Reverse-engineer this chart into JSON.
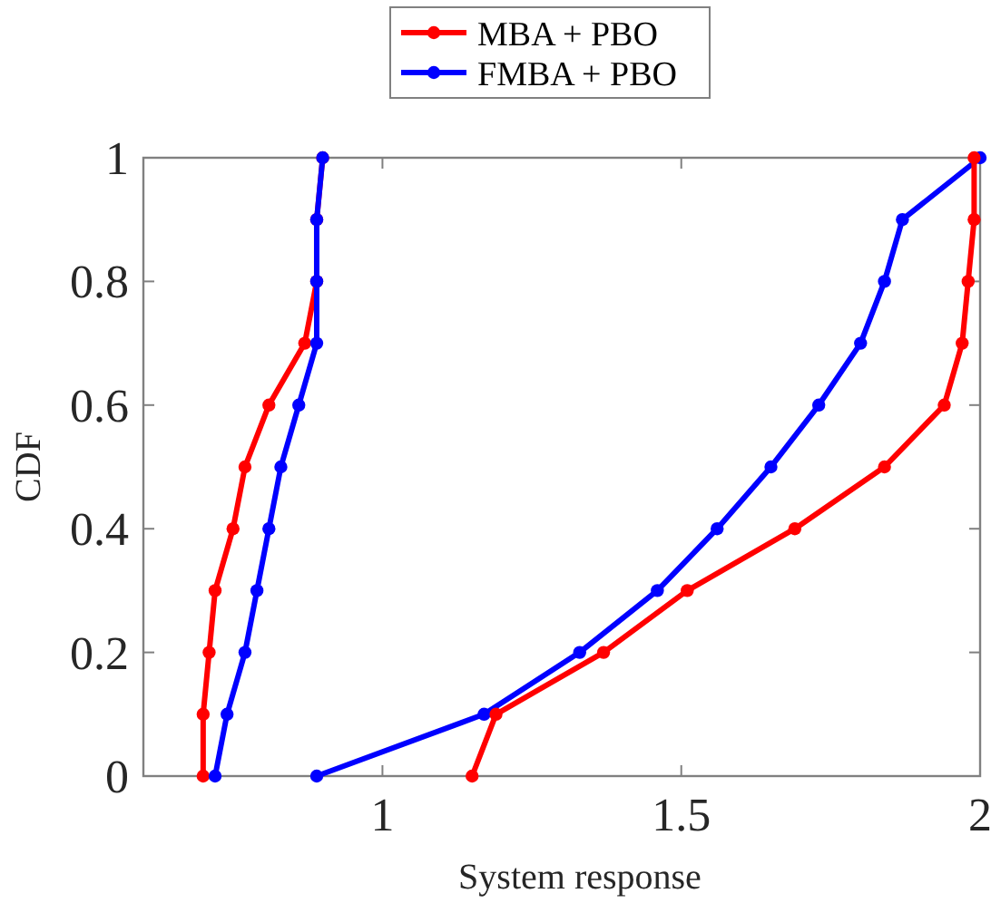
{
  "chart_data": {
    "type": "line",
    "xlabel": "System response",
    "ylabel": "CDF",
    "xlim": [
      0.6,
      2
    ],
    "xticks": [
      1,
      1.5,
      2
    ],
    "ylim": [
      0,
      1
    ],
    "yticks": [
      0,
      0.2,
      0.4,
      0.6,
      0.8,
      1
    ],
    "grid": false,
    "legend": "top",
    "marker": "circle",
    "line_style": "solid",
    "series": [
      {
        "name": "MBA + PBO",
        "color": "#ff0000",
        "x": [
          0.7,
          0.7,
          0.71,
          0.72,
          0.75,
          0.77,
          0.81,
          0.87,
          0.89,
          0.89,
          0.9
        ],
        "values": [
          0,
          0.1,
          0.2,
          0.3,
          0.4,
          0.5,
          0.6,
          0.7,
          0.8,
          0.9,
          1
        ]
      },
      {
        "name": "FMBA + PBO",
        "color": "#0000ff",
        "x": [
          0.72,
          0.74,
          0.77,
          0.79,
          0.81,
          0.83,
          0.86,
          0.89,
          0.89,
          0.89,
          0.9
        ],
        "values": [
          0,
          0.1,
          0.2,
          0.3,
          0.4,
          0.5,
          0.6,
          0.7,
          0.8,
          0.9,
          1
        ]
      },
      {
        "color": "#0000ff",
        "x": [
          0.89,
          1.17,
          1.33,
          1.46,
          1.56,
          1.65,
          1.73,
          1.8,
          1.84,
          1.87,
          2.0
        ],
        "values": [
          0,
          0.1,
          0.2,
          0.3,
          0.4,
          0.5,
          0.6,
          0.7,
          0.8,
          0.9,
          1
        ]
      },
      {
        "color": "#ff0000",
        "x": [
          1.15,
          1.19,
          1.37,
          1.51,
          1.69,
          1.84,
          1.94,
          1.97,
          1.98,
          1.99,
          1.99
        ],
        "values": [
          0,
          0.1,
          0.2,
          0.3,
          0.4,
          0.5,
          0.6,
          0.7,
          0.8,
          0.9,
          1
        ]
      }
    ]
  }
}
